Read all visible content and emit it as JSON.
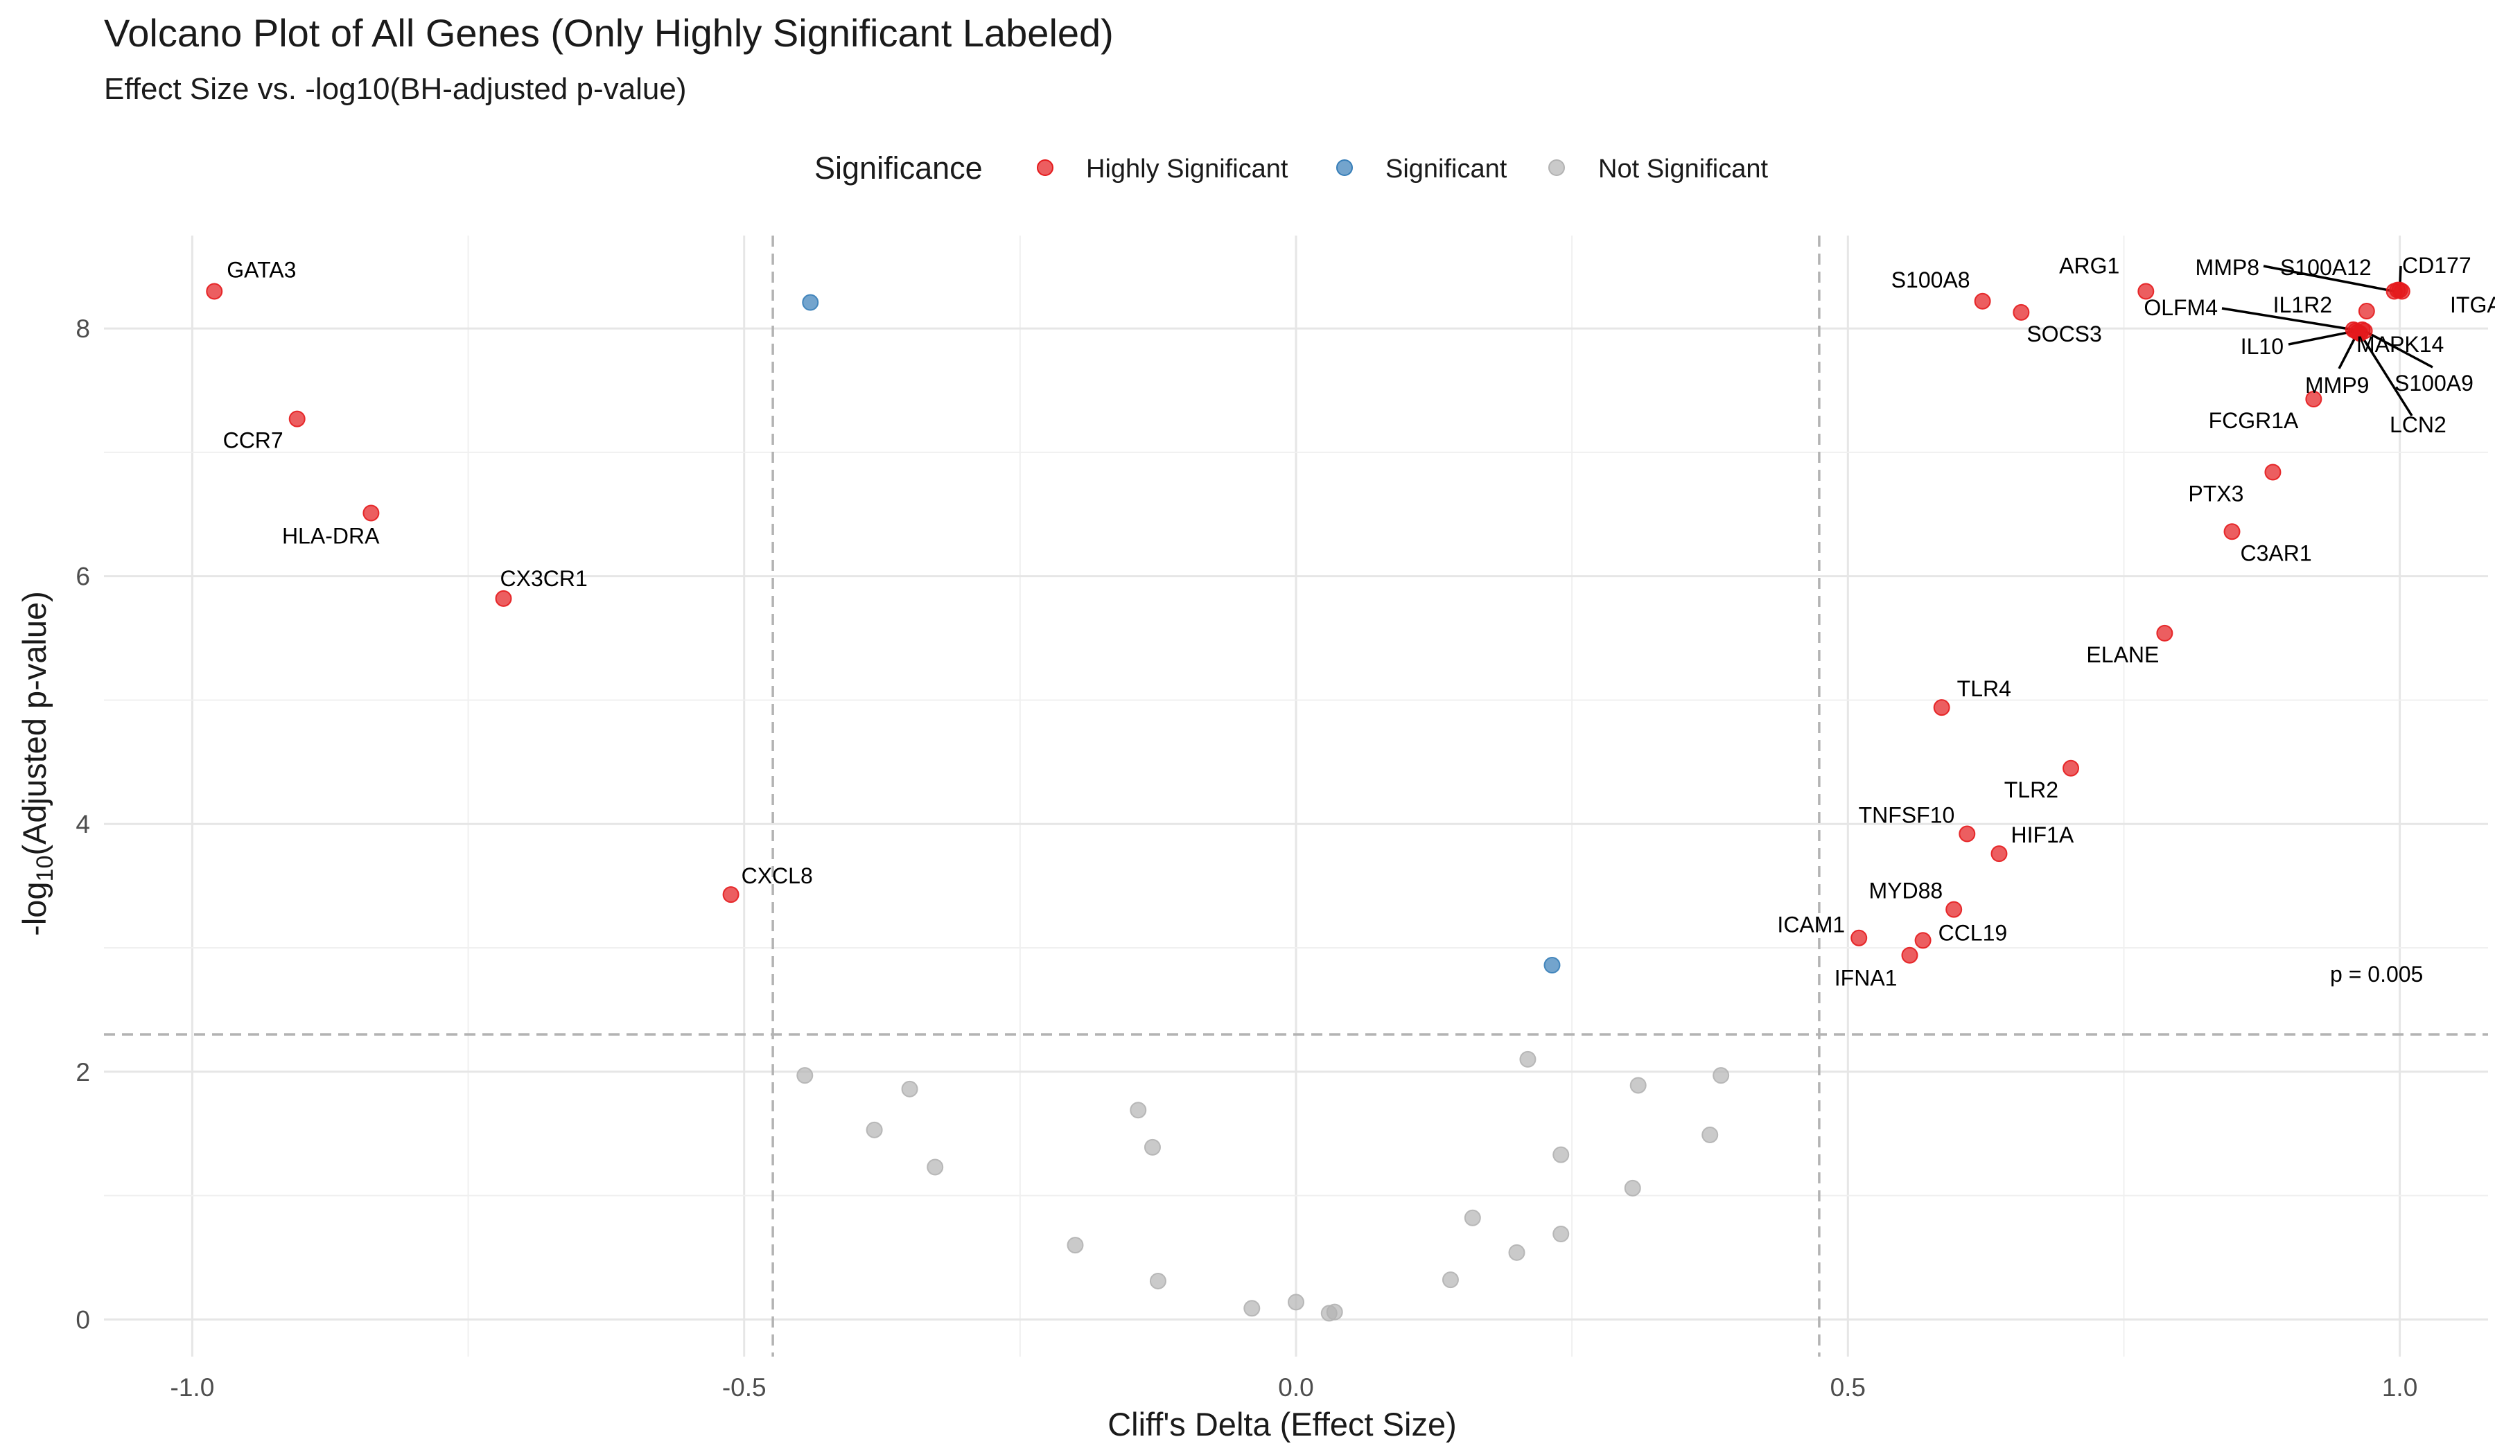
{
  "chart_data": {
    "type": "scatter",
    "title": "Volcano Plot of All Genes (Only Highly Significant Labeled)",
    "subtitle": "Effect Size vs. -log10(BH-adjusted p-value)",
    "xlabel": "Cliff's Delta (Effect Size)",
    "ylabel_prefix": "-log",
    "ylabel_sub": "10",
    "ylabel_suffix": "(Adjusted p-value)",
    "xlim": [
      -1.08,
      1.08
    ],
    "ylim": [
      -0.3,
      8.75
    ],
    "x_ticks": [
      -1.0,
      -0.5,
      0.0,
      0.5,
      1.0
    ],
    "x_tick_labels": [
      "-1.0",
      "-0.5",
      "0.0",
      "0.5",
      "1.0"
    ],
    "y_ticks": [
      0,
      2,
      4,
      6,
      8
    ],
    "y_tick_labels": [
      "0",
      "2",
      "4",
      "6",
      "8"
    ],
    "grid": true,
    "thresholds": {
      "x": [
        -0.474,
        0.474
      ],
      "y": 2.301
    },
    "threshold_annotation": "p = 0.005",
    "legend": {
      "title": "Significance",
      "position": "top",
      "entries": [
        {
          "label": "Highly Significant",
          "color": "#e41a1c"
        },
        {
          "label": "Significant",
          "color": "#377eb8"
        },
        {
          "label": "Not Significant",
          "color": "#b3b3b3"
        }
      ]
    },
    "series": [
      {
        "name": "Highly Significant",
        "color": "#e41a1c",
        "points": [
          {
            "label": "GATA3",
            "x": -0.98,
            "y": 8.3
          },
          {
            "label": "CCR7",
            "x": -0.905,
            "y": 7.27
          },
          {
            "label": "HLA-DRA",
            "x": -0.838,
            "y": 6.51
          },
          {
            "label": "CX3CR1",
            "x": -0.718,
            "y": 5.82
          },
          {
            "label": "CXCL8",
            "x": -0.512,
            "y": 3.43
          },
          {
            "label": "S100A8",
            "x": 0.622,
            "y": 8.22
          },
          {
            "label": "SOCS3",
            "x": 0.657,
            "y": 8.13
          },
          {
            "label": "ARG1",
            "x": 0.77,
            "y": 8.3
          },
          {
            "label": "MMP8",
            "x": 0.995,
            "y": 8.3
          },
          {
            "label": "S100A12",
            "x": 0.998,
            "y": 8.31
          },
          {
            "label": "CD177",
            "x": 1.0,
            "y": 8.31
          },
          {
            "label": "ITGAM",
            "x": 1.002,
            "y": 8.3
          },
          {
            "label": "IL1R2",
            "x": 0.97,
            "y": 8.14
          },
          {
            "label": "OLFM4",
            "x": 0.958,
            "y": 7.99
          },
          {
            "label": "IL10",
            "x": 0.96,
            "y": 7.98
          },
          {
            "label": "MAPK14",
            "x": 0.966,
            "y": 7.99
          },
          {
            "label": "MMP9",
            "x": 0.962,
            "y": 7.97
          },
          {
            "label": "S100A9",
            "x": 0.968,
            "y": 7.98
          },
          {
            "label": "LCN2",
            "x": 0.964,
            "y": 7.96
          },
          {
            "label": "FCGR1A",
            "x": 0.922,
            "y": 7.43
          },
          {
            "label": "PTX3",
            "x": 0.885,
            "y": 6.84
          },
          {
            "label": "C3AR1",
            "x": 0.848,
            "y": 6.36
          },
          {
            "label": "ELANE",
            "x": 0.787,
            "y": 5.54
          },
          {
            "label": "TLR4",
            "x": 0.585,
            "y": 4.94
          },
          {
            "label": "TLR2",
            "x": 0.702,
            "y": 4.45
          },
          {
            "label": "TNFSF10",
            "x": 0.608,
            "y": 3.92
          },
          {
            "label": "HIF1A",
            "x": 0.637,
            "y": 3.76
          },
          {
            "label": "MYD88",
            "x": 0.596,
            "y": 3.31
          },
          {
            "label": "ICAM1",
            "x": 0.51,
            "y": 3.08
          },
          {
            "label": "CCL19",
            "x": 0.568,
            "y": 3.06
          },
          {
            "label": "IFNA1",
            "x": 0.556,
            "y": 2.94
          }
        ]
      },
      {
        "name": "Significant",
        "color": "#377eb8",
        "points": [
          {
            "x": -0.44,
            "y": 8.21
          },
          {
            "x": 0.232,
            "y": 2.86
          }
        ]
      },
      {
        "name": "Not Significant",
        "color": "#b3b3b3",
        "points": [
          {
            "x": -0.445,
            "y": 1.97
          },
          {
            "x": -0.382,
            "y": 1.53
          },
          {
            "x": -0.35,
            "y": 1.86
          },
          {
            "x": -0.327,
            "y": 1.23
          },
          {
            "x": -0.2,
            "y": 0.6
          },
          {
            "x": -0.143,
            "y": 1.69
          },
          {
            "x": -0.13,
            "y": 1.39
          },
          {
            "x": -0.125,
            "y": 0.31
          },
          {
            "x": -0.04,
            "y": 0.09
          },
          {
            "x": 0.0,
            "y": 0.14
          },
          {
            "x": 0.03,
            "y": 0.05
          },
          {
            "x": 0.035,
            "y": 0.06
          },
          {
            "x": 0.14,
            "y": 0.32
          },
          {
            "x": 0.16,
            "y": 0.82
          },
          {
            "x": 0.2,
            "y": 0.54
          },
          {
            "x": 0.21,
            "y": 2.1
          },
          {
            "x": 0.24,
            "y": 0.69
          },
          {
            "x": 0.24,
            "y": 1.33
          },
          {
            "x": 0.305,
            "y": 1.06
          },
          {
            "x": 0.31,
            "y": 1.89
          },
          {
            "x": 0.375,
            "y": 1.49
          },
          {
            "x": 0.385,
            "y": 1.97
          }
        ]
      }
    ]
  }
}
